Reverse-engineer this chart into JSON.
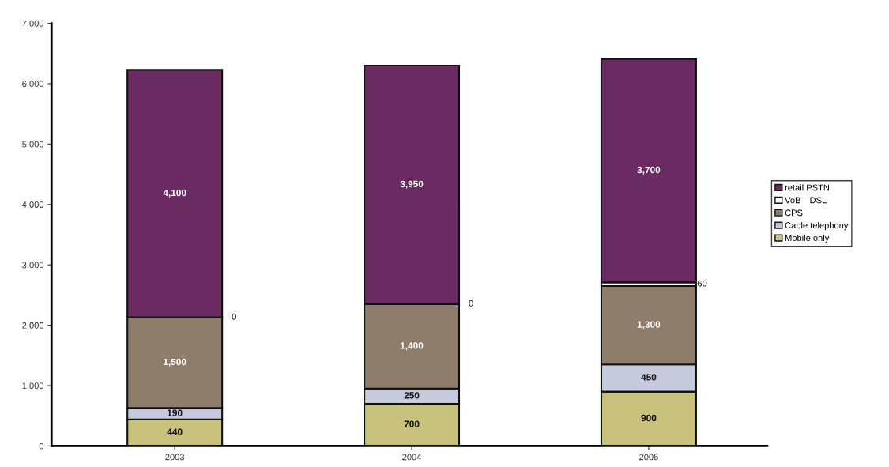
{
  "chart_data": {
    "type": "bar",
    "stacked": true,
    "categories": [
      "2003",
      "2004",
      "2005"
    ],
    "series": [
      {
        "name": "Mobile only",
        "color": "#c9c27c",
        "values": [
          440,
          700,
          900
        ],
        "value_labels": [
          "440",
          "700",
          "900"
        ]
      },
      {
        "name": "Cable telephony",
        "color": "#c6cadc",
        "values": [
          190,
          250,
          450
        ],
        "value_labels": [
          "190",
          "250",
          "450"
        ]
      },
      {
        "name": "CPS",
        "color": "#8e7d6b",
        "values": [
          1500,
          1400,
          1300
        ],
        "value_labels": [
          "1,500",
          "1,400",
          "1,300"
        ]
      },
      {
        "name": "VoB—DSL",
        "color": "#ffffff",
        "values": [
          0,
          0,
          60
        ],
        "value_labels": [
          null,
          null,
          "60"
        ]
      },
      {
        "name": "retail PSTN",
        "color": "#6a2a62",
        "values": [
          4100,
          3950,
          3700
        ],
        "value_labels": [
          "4,100",
          "3,950",
          "3,700"
        ]
      }
    ],
    "ylim": [
      0,
      7000
    ],
    "yticks": [
      0,
      {
        "value": 1000,
        "label": "1,000"
      },
      {
        "value": 2000,
        "label": "2,000"
      },
      {
        "value": 3000,
        "label": "3,000"
      },
      {
        "value": 4000,
        "label": "4,000"
      },
      {
        "value": 5000,
        "label": "5,000"
      },
      {
        "value": 6000,
        "label": "6,000"
      },
      {
        "value": 7000,
        "label": "7,000"
      }
    ],
    "annotations": [
      "0",
      "0"
    ],
    "legend": "right",
    "grid": false
  }
}
